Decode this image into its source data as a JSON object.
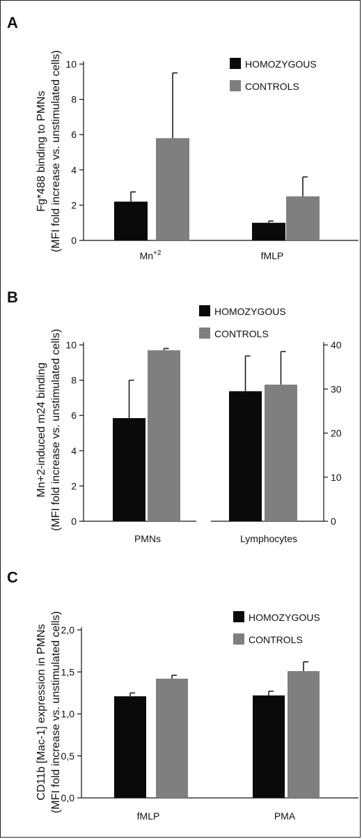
{
  "colors": {
    "homozygous": "#0a0a0a",
    "controls": "#7f7f7f"
  },
  "chart_data": [
    {
      "panel": "A",
      "type": "bar",
      "ylabel_line1": "Fg*488 binding to PMNs",
      "ylabel_line2": "(MFI fold increase vs. unstimulated cells)",
      "ylim": [
        0,
        10
      ],
      "yticks": [
        "0",
        "2",
        "4",
        "6",
        "8",
        "10"
      ],
      "categories": [
        "Mn+2",
        "fMLP"
      ],
      "series": [
        {
          "name": "HOMOZYGOUS",
          "values": [
            2.2,
            1.0
          ],
          "errors": [
            0.55,
            0.1
          ]
        },
        {
          "name": "CONTROLS",
          "values": [
            5.8,
            2.5
          ],
          "errors": [
            3.7,
            1.1
          ]
        }
      ],
      "legend": "top-right"
    },
    {
      "panel": "B",
      "type": "bar",
      "ylabel_line1": "Mn+2-induced m24 binding",
      "ylabel_line2": "(MFI fold increase vs. unstimulated cells)",
      "ylim": [
        0,
        10
      ],
      "yticks": [
        "0",
        "2",
        "4",
        "6",
        "8",
        "10"
      ],
      "y2lim": [
        0,
        40
      ],
      "y2ticks": [
        "0",
        "10",
        "20",
        "30",
        "40"
      ],
      "categories": [
        "PMNs",
        "Lymphocytes"
      ],
      "series": [
        {
          "name": "HOMOZYGOUS",
          "values": [
            5.85,
            29.5
          ],
          "errors": [
            2.15,
            8.0
          ]
        },
        {
          "name": "CONTROLS",
          "values": [
            9.7,
            31.0
          ],
          "errors": [
            0.1,
            7.5
          ]
        }
      ],
      "note": "PMNs plotted on left axis (0-10); Lymphocytes on right axis (0-40)",
      "legend": "top-center"
    },
    {
      "panel": "C",
      "type": "bar",
      "ylabel_line1": "CD11b [Mac-1] expression in PMNs",
      "ylabel_line2": "(MFI fold increase vs. unstimulated cells)",
      "ylim": [
        0,
        2
      ],
      "yticks": [
        "0,0",
        "0,5",
        "1,0",
        "1,5",
        "2,0"
      ],
      "categories": [
        "fMLP",
        "PMA"
      ],
      "series": [
        {
          "name": "HOMOZYGOUS",
          "values": [
            1.21,
            1.22
          ],
          "errors": [
            0.04,
            0.05
          ]
        },
        {
          "name": "CONTROLS",
          "values": [
            1.42,
            1.51
          ],
          "errors": [
            0.04,
            0.11
          ]
        }
      ],
      "legend": "top-right"
    }
  ]
}
